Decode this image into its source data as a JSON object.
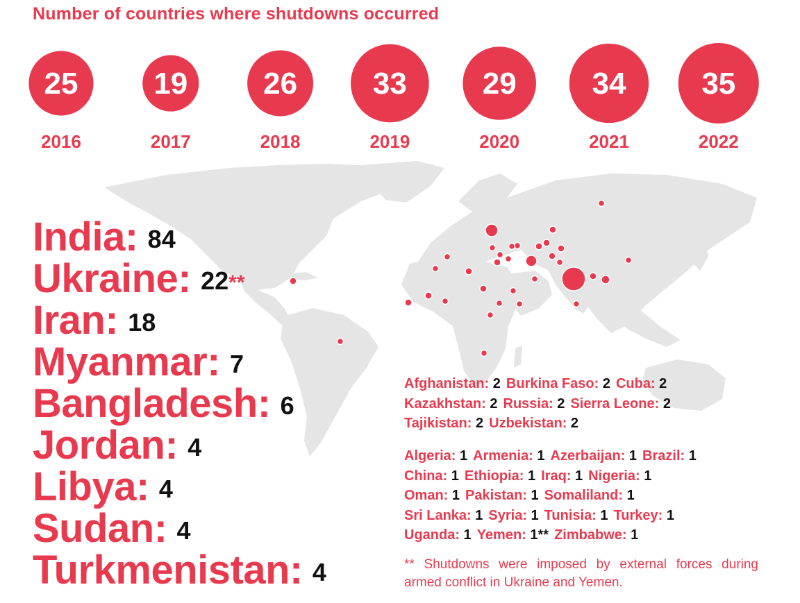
{
  "title": "Number of countries where shutdowns occurred",
  "colors": {
    "accent": "#e83a4f",
    "land": "#e5e5e5",
    "text": "#111111"
  },
  "chart_data": {
    "type": "bubble",
    "title": "Number of countries where shutdowns occurred",
    "categories": [
      "2016",
      "2017",
      "2018",
      "2019",
      "2020",
      "2021",
      "2022"
    ],
    "values": [
      25,
      19,
      26,
      33,
      29,
      34,
      35
    ]
  },
  "top_countries": [
    {
      "name": "India:",
      "count": "84",
      "mark": ""
    },
    {
      "name": "Ukraine:",
      "count": "22",
      "mark": "**"
    },
    {
      "name": "Iran:",
      "count": "18",
      "mark": ""
    },
    {
      "name": "Myanmar:",
      "count": "7",
      "mark": ""
    },
    {
      "name": "Bangladesh:",
      "count": "6",
      "mark": ""
    },
    {
      "name": "Jordan:",
      "count": "4",
      "mark": ""
    },
    {
      "name": "Libya:",
      "count": "4",
      "mark": ""
    },
    {
      "name": "Sudan:",
      "count": "4",
      "mark": ""
    },
    {
      "name": "Turkmenistan:",
      "count": "4",
      "mark": ""
    }
  ],
  "two_shutdowns": [
    [
      {
        "name": "Afghanistan:",
        "value": "2"
      },
      {
        "name": "Burkina Faso:",
        "value": "2"
      },
      {
        "name": "Cuba:",
        "value": "2"
      }
    ],
    [
      {
        "name": "Kazakhstan:",
        "value": "2"
      },
      {
        "name": "Russia:",
        "value": "2"
      },
      {
        "name": "Sierra Leone:",
        "value": "2"
      }
    ],
    [
      {
        "name": "Tajikistan:",
        "value": "2"
      },
      {
        "name": "Uzbekistan:",
        "value": "2"
      }
    ]
  ],
  "one_shutdown": [
    [
      {
        "name": "Algeria:",
        "value": "1"
      },
      {
        "name": "Armenia:",
        "value": "1"
      },
      {
        "name": "Azerbaijan:",
        "value": "1"
      },
      {
        "name": "Brazil:",
        "value": "1"
      }
    ],
    [
      {
        "name": "China:",
        "value": "1"
      },
      {
        "name": "Ethiopia:",
        "value": "1"
      },
      {
        "name": "Iraq:",
        "value": "1"
      },
      {
        "name": "Nigeria:",
        "value": "1"
      }
    ],
    [
      {
        "name": "Oman:",
        "value": "1"
      },
      {
        "name": "Pakistan:",
        "value": "1"
      },
      {
        "name": "Somaliland:",
        "value": "1"
      }
    ],
    [
      {
        "name": "Sri Lanka:",
        "value": "1"
      },
      {
        "name": "Syria:",
        "value": "1"
      },
      {
        "name": "Tunisia:",
        "value": "1"
      },
      {
        "name": "Turkey:",
        "value": "1"
      }
    ],
    [
      {
        "name": "Uganda:",
        "value": "1"
      },
      {
        "name": "Yemen:",
        "value": "1**"
      },
      {
        "name": "Zimbabwe:",
        "value": "1"
      }
    ]
  ],
  "footnote": {
    "mark": "**",
    "text": "Shutdowns were imposed by external forces during armed conflict in Ukraine and Yemen."
  }
}
